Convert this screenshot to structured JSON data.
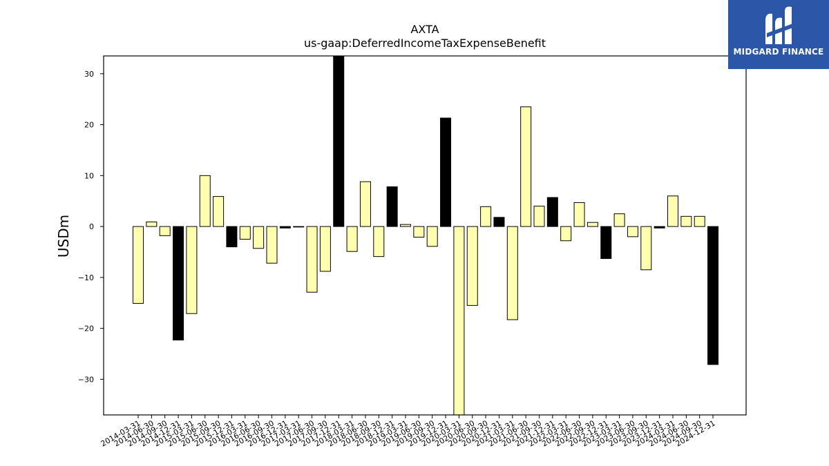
{
  "logo": {
    "text": "MIDGARD FINANCE",
    "icon": "midgard-logo-icon",
    "background": "#2c57a8"
  },
  "chart_data": {
    "type": "bar",
    "title": "AXTA",
    "subtitle": "us-gaap:DeferredIncomeTaxExpenseBenefit",
    "xlabel": "",
    "ylabel": "USDm",
    "ylim": [
      -37,
      33.5
    ],
    "yticks": [
      30,
      20,
      10,
      0,
      -10,
      -20,
      -30
    ],
    "ytick_labels": [
      "30",
      "20",
      "10",
      "0",
      "−10",
      "−20",
      "−30"
    ],
    "grid": false,
    "colors": {
      "quarterly": "#ffffb0",
      "year_end": "#000000",
      "edge": "#000000"
    },
    "categories": [
      "2014-03-31",
      "2014-06-30",
      "2014-09-30",
      "2014-12-31",
      "2015-03-31",
      "2015-06-30",
      "2015-09-30",
      "2015-12-31",
      "2016-03-31",
      "2016-06-30",
      "2016-09-30",
      "2016-12-31",
      "2017-03-31",
      "2017-06-30",
      "2017-09-30",
      "2017-12-31",
      "2018-03-31",
      "2018-06-30",
      "2018-09-30",
      "2018-12-31",
      "2019-03-31",
      "2019-06-30",
      "2019-09-30",
      "2019-12-31",
      "2020-03-31",
      "2020-06-30",
      "2020-09-30",
      "2020-12-31",
      "2021-03-31",
      "2021-06-30",
      "2021-09-30",
      "2021-12-31",
      "2022-03-31",
      "2022-06-30",
      "2022-09-30",
      "2022-12-31",
      "2023-03-31",
      "2023-06-30",
      "2023-09-30",
      "2023-12-31",
      "2024-03-31",
      "2024-06-30",
      "2024-09-30",
      "2024-12-31"
    ],
    "values": [
      -15.1,
      0.9,
      -1.8,
      -22.3,
      -17.1,
      10.0,
      5.9,
      -4.0,
      -2.5,
      -4.3,
      -7.2,
      -0.3,
      -0.1,
      -12.9,
      -8.8,
      33.5,
      -4.9,
      8.8,
      -5.9,
      7.8,
      0.4,
      -2.1,
      -3.9,
      21.3,
      -37.0,
      -15.5,
      3.9,
      1.8,
      -18.3,
      23.5,
      4.0,
      5.7,
      -2.8,
      4.7,
      0.8,
      -6.3,
      2.5,
      -2.0,
      -8.5,
      -0.3,
      6.0,
      2.0,
      2.0,
      -27.1
    ]
  }
}
